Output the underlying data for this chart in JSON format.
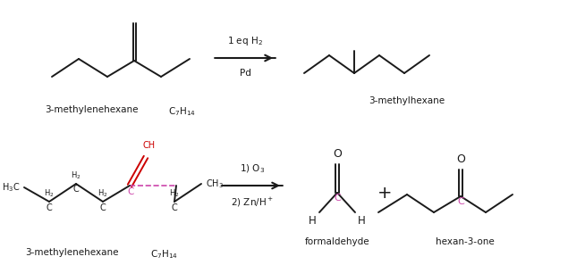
{
  "bg_color": "#ffffff",
  "text_color": "#1a1a1a",
  "line_color": "#1a1a1a",
  "red_color": "#cc0000",
  "pink_color": "#cc44aa",
  "fig_w": 6.54,
  "fig_h": 2.97,
  "dpi": 100,
  "top_reagent": "1 eq H$_2$",
  "top_catalyst": "Pd",
  "top_reactant_name": "3-methylenehexane",
  "top_reactant_formula": "C$_7$H$_{14}$",
  "top_product_name": "3-methylhexane",
  "bot_step1": "1) O$_3$",
  "bot_step2": "2) Zn/H$^+$",
  "bot_reactant_name": "3-methylenehexane",
  "bot_reactant_formula": "C$_7$H$_{14}$",
  "bot_prod1_name": "formaldehyde",
  "bot_prod2_name": "hexan-3-one",
  "plus": "+"
}
